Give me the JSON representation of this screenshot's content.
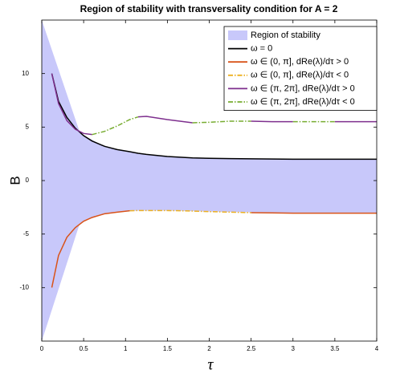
{
  "chart_data": {
    "type": "line",
    "title": "Region of stability with transversality condition for A = 2",
    "xlabel": "τ",
    "ylabel": "B",
    "xlim": [
      0,
      4
    ],
    "ylim": [
      -15,
      15
    ],
    "xticks": [
      0,
      0.5,
      1,
      1.5,
      2,
      2.5,
      3,
      3.5,
      4
    ],
    "yticks": [
      -10,
      -5,
      0,
      5,
      10
    ],
    "grid": false,
    "legend": "upper-right",
    "region": {
      "name": "Region of stability",
      "color": "#c8c8fa",
      "x": [
        0,
        0.45,
        0.5,
        0.75,
        1,
        1.5,
        2,
        3,
        4
      ],
      "upper": [
        15,
        4.6,
        4.2,
        3.2,
        2.7,
        2.25,
        2.08,
        2.0,
        2.0
      ],
      "lower": [
        -15,
        -4.1,
        -3.8,
        -3.1,
        -2.82,
        -2.8,
        -2.9,
        -3.05,
        -3.05
      ]
    },
    "x": [
      0.12,
      0.2,
      0.3,
      0.4,
      0.5,
      0.6,
      0.75,
      0.9,
      1.05,
      1.15,
      1.25,
      1.5,
      1.8,
      2,
      2.25,
      2.5,
      2.75,
      3,
      3.25,
      3.5,
      3.75,
      4
    ],
    "series": [
      {
        "name": "ω = 0",
        "color": "#000000",
        "style": "solid",
        "values": [
          10,
          7.4,
          5.9,
          4.9,
          4.2,
          3.7,
          3.2,
          2.9,
          2.7,
          2.55,
          2.45,
          2.25,
          2.12,
          2.08,
          2.05,
          2.03,
          2.02,
          2.0,
          2.0,
          2.0,
          2.0,
          2.0
        ]
      },
      {
        "name": "ω ∈ (0, π], dRe(λ)/dτ > 0",
        "color": "#d95319",
        "style": "solid",
        "values": [
          -10,
          -7,
          -5.3,
          -4.4,
          -3.8,
          -3.45,
          -3.1,
          -2.95,
          -2.82,
          null,
          null,
          null,
          null,
          null,
          null,
          -3.0,
          -3.02,
          -3.05,
          -3.05,
          -3.05,
          -3.05,
          -3.05
        ]
      },
      {
        "name": "ω ∈ (0, π], dRe(λ)/dτ < 0",
        "color": "#edb120",
        "style": "dashdot",
        "values": [
          null,
          null,
          null,
          null,
          null,
          null,
          null,
          null,
          -2.82,
          -2.8,
          -2.8,
          -2.8,
          -2.85,
          -2.9,
          -2.95,
          -3.0,
          null,
          null,
          null,
          null,
          null,
          null
        ]
      },
      {
        "name": "ω ∈ (π, 2π], dRe(λ)/dτ > 0",
        "color": "#7e2f8e",
        "style": "solid",
        "values": [
          10,
          7.2,
          5.6,
          4.8,
          4.4,
          4.3,
          null,
          null,
          null,
          5.95,
          6.0,
          5.7,
          5.4,
          null,
          null,
          5.55,
          5.5,
          5.5,
          null,
          5.5,
          5.5,
          5.5
        ]
      },
      {
        "name": "ω ∈ (π, 2π], dRe(λ)/dτ < 0",
        "color": "#77ac30",
        "style": "dashdot",
        "values": [
          null,
          null,
          null,
          null,
          null,
          4.3,
          4.6,
          5.1,
          5.7,
          5.95,
          null,
          null,
          5.4,
          5.45,
          5.55,
          5.55,
          null,
          5.5,
          5.5,
          5.5,
          null,
          null
        ]
      }
    ]
  }
}
